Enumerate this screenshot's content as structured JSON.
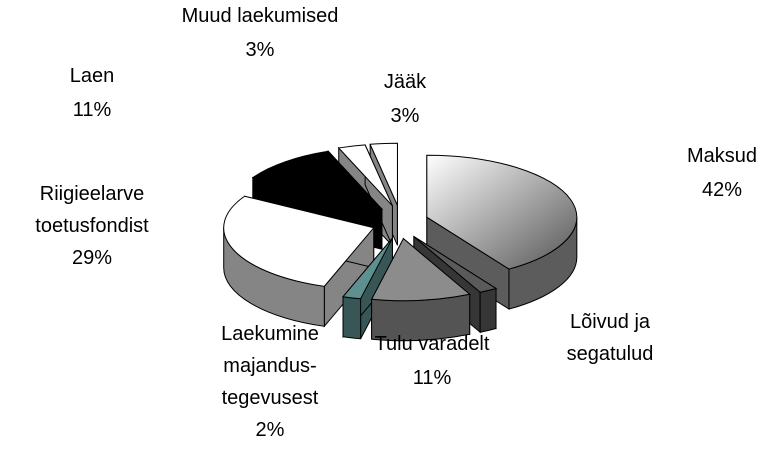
{
  "chart_data": {
    "type": "pie3d",
    "categories": [
      "Maksud",
      "Lõivud ja\nsegatulud",
      "Tulu varadelt",
      "Laekumine\nmajandus-\ntegevusest",
      "Riigieelarve\ntoetusfondist",
      "Laen",
      "Muud laekumised",
      "Jääk"
    ],
    "values": [
      42,
      2,
      11,
      2,
      29,
      11,
      3,
      3
    ],
    "value_labels": [
      "42%",
      null,
      "11%",
      "2%",
      "29%",
      "11%",
      "3%",
      "3%"
    ],
    "colors": [
      "#9a9a9a",
      "#5a5a5a",
      "#8c8c8c",
      "#5f9090",
      "#ffffff",
      "#000000",
      "#ffffff",
      "#ffffff"
    ]
  }
}
